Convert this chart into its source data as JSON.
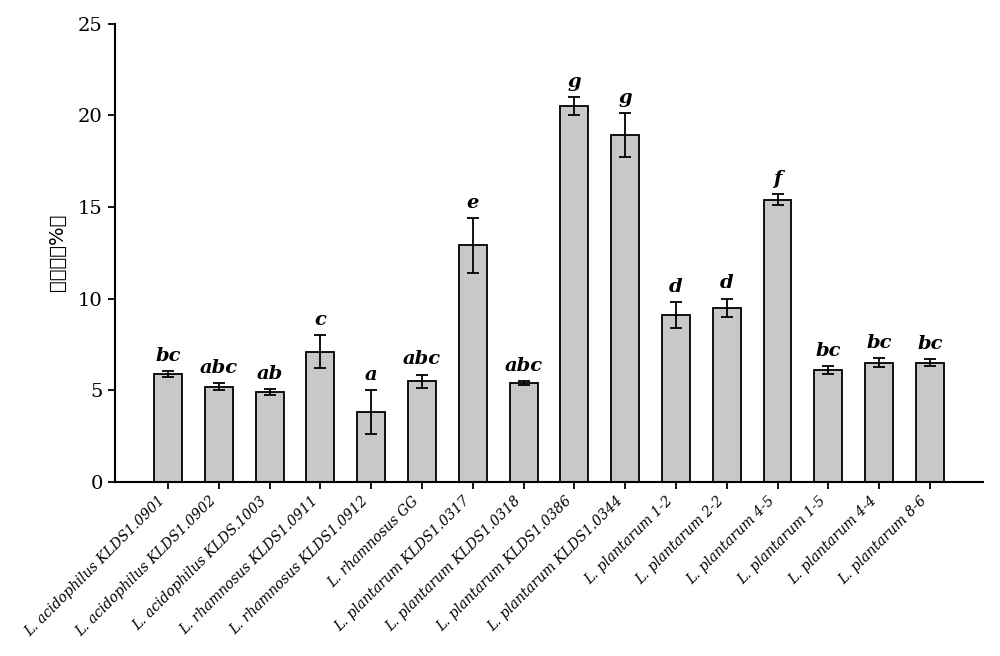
{
  "categories": [
    "L. acidophilus KLDS1.0901",
    "L. acidophilus KLDS1.0902",
    "L. acidophilus KLDS.1003",
    "L. rhamnosus KLDS1.0911",
    "L. rhamnosus KLDS1.0912",
    "L. rhamnosus GG",
    "L. plantarum KLDS1.0317",
    "L. plantarum KLDS1.0318",
    "L. plantarum KLDS1.0386",
    "L. plantarum KLDS1.0344",
    "L. plantarum 1-2",
    "L. plantarum 2-2",
    "L. plantarum 4-5",
    "L. plantarum 1-5",
    "L. plantarum 4-4",
    "L. plantarum 8-6"
  ],
  "values": [
    5.9,
    5.2,
    4.9,
    7.1,
    3.8,
    5.5,
    12.9,
    5.4,
    20.5,
    18.9,
    9.1,
    9.5,
    15.4,
    6.1,
    6.5,
    6.5
  ],
  "errors": [
    0.15,
    0.2,
    0.15,
    0.9,
    1.2,
    0.35,
    1.5,
    0.1,
    0.5,
    1.2,
    0.7,
    0.5,
    0.3,
    0.2,
    0.25,
    0.2
  ],
  "sig_labels": [
    "bc",
    "abc",
    "ab",
    "c",
    "a",
    "abc",
    "e",
    "abc",
    "g",
    "g",
    "d",
    "d",
    "f",
    "bc",
    "bc",
    "bc"
  ],
  "bar_color": "#c8c8c8",
  "bar_edgecolor": "#000000",
  "ylabel": "降解率（%）",
  "ylim": [
    0,
    25
  ],
  "yticks": [
    0,
    5,
    10,
    15,
    20,
    25
  ],
  "label_fontsize": 14,
  "tick_fontsize": 14,
  "annotation_fontsize": 14,
  "xtick_fontsize": 10,
  "bar_width": 0.55,
  "fig_width": 10.0,
  "fig_height": 6.56,
  "dpi": 100
}
